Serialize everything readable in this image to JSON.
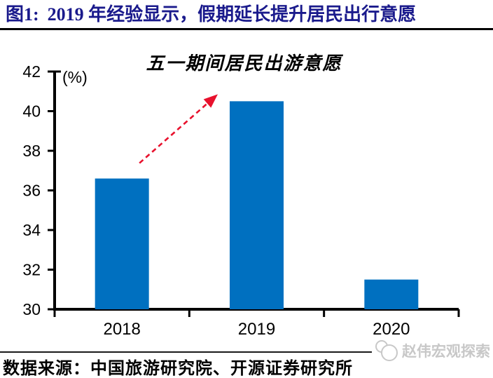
{
  "header": {
    "figure_label": "图1:",
    "figure_title": "2019 年经验显示，假期延长提升居民出行意愿",
    "accent_color": "#1a1a8c"
  },
  "chart_data": {
    "type": "bar",
    "title": "五一期间居民出游意愿",
    "unit_label": "(%)",
    "categories": [
      "2018",
      "2019",
      "2020"
    ],
    "values": [
      36.6,
      40.5,
      31.5
    ],
    "ylim": [
      30,
      42
    ],
    "ytick_step": 2,
    "yticks": [
      30,
      32,
      34,
      36,
      38,
      40,
      42
    ],
    "bar_color": "#0070C0",
    "axis_color": "#000000",
    "grid": false,
    "legend": "none",
    "annotation": {
      "type": "arrow",
      "from_category": "2018",
      "to_category": "2019",
      "color": "#e8112d",
      "line_style": "dashed"
    }
  },
  "footer": {
    "source_text": "数据来源：中国旅游研究院、开源证券研究所",
    "watermark_text": "赵伟宏观探索",
    "watermark_color": "#c8c8c8"
  }
}
